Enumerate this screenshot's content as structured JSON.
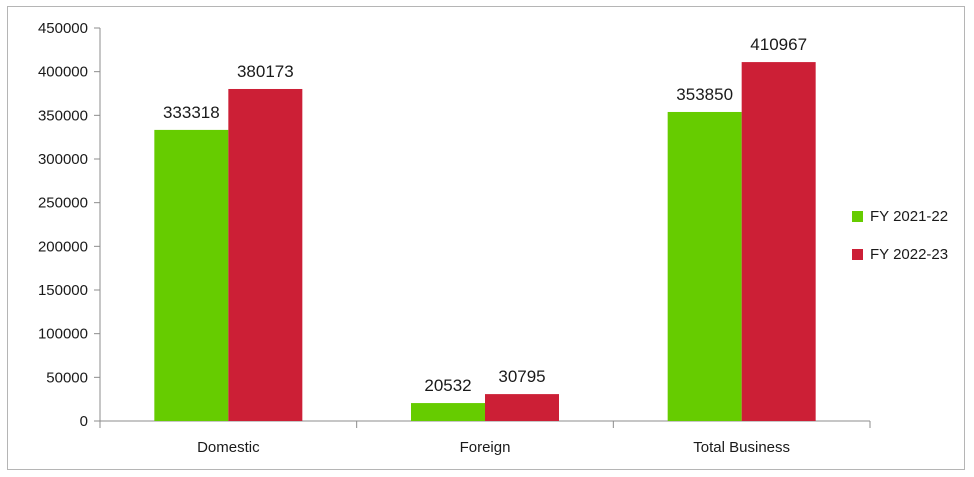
{
  "chart_data": {
    "type": "bar",
    "categories": [
      "Domestic",
      "Foreign",
      "Total Business"
    ],
    "series": [
      {
        "name": "FY 2021-22",
        "color": "#66cc00",
        "values": [
          333318,
          20532,
          353850
        ]
      },
      {
        "name": "FY 2022-23",
        "color": "#cc1f36",
        "values": [
          380173,
          30795,
          410967
        ]
      }
    ],
    "ylim": [
      0,
      450000
    ],
    "yticks": [
      0,
      50000,
      100000,
      150000,
      200000,
      250000,
      300000,
      350000,
      400000,
      450000
    ],
    "data_labels": true,
    "legend_position": "right",
    "grid": false
  }
}
